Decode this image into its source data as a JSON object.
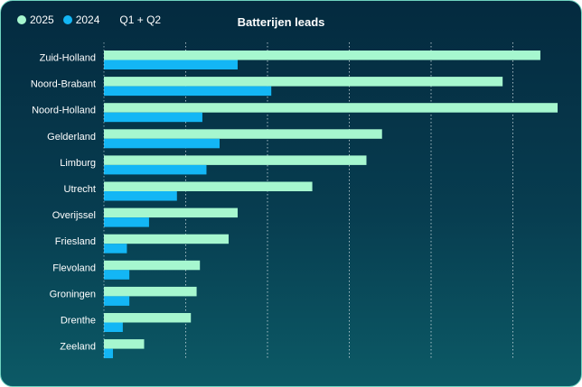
{
  "legend": {
    "items": [
      {
        "label": "2025",
        "color": "#a6f7cf"
      },
      {
        "label": "2024",
        "color": "#13b6f5"
      }
    ],
    "period": "Q1 + Q2"
  },
  "chart_data": {
    "type": "bar",
    "orientation": "horizontal",
    "title": "Batterijen leads",
    "categories": [
      "Zuid-Holland",
      "Noord-Brabant",
      "Noord-Holland",
      "Gelderland",
      "Limburg",
      "Utrecht",
      "Overijssel",
      "Friesland",
      "Flevoland",
      "Groningen",
      "Drenthe",
      "Zeeland"
    ],
    "series": [
      {
        "name": "2025",
        "color": "#a6f7cf",
        "values": [
          532,
          486,
          553,
          339,
          320,
          254,
          163,
          152,
          117,
          113,
          106,
          49
        ]
      },
      {
        "name": "2024",
        "color": "#13b6f5",
        "values": [
          163,
          204,
          120,
          141,
          125,
          89,
          55,
          28,
          31,
          31,
          23,
          11
        ]
      }
    ],
    "xlim": [
      0,
      553
    ],
    "grid": true,
    "gridlines": 5,
    "legend_position": "top-left"
  }
}
